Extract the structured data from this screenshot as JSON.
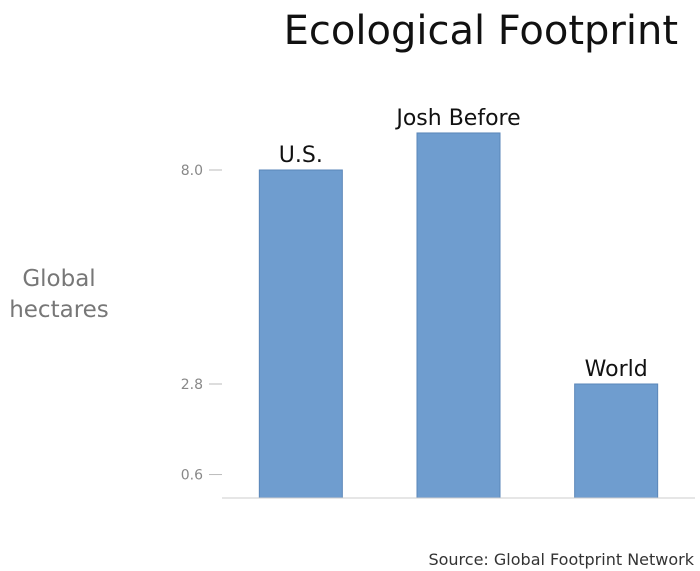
{
  "chart_data": {
    "type": "bar",
    "title": "Ecological Footprint",
    "ylabel": "Global hectares",
    "xlabel": "",
    "categories": [
      "U.S.",
      "Josh Before",
      "World"
    ],
    "values": [
      8.0,
      8.9,
      2.8
    ],
    "yticks": [
      0.6,
      2.8,
      8.0
    ],
    "ytick_labels": [
      "0.6",
      "2.8",
      "8.0"
    ],
    "ylim": [
      0,
      9.2
    ],
    "bar_color": "#6f9dcf",
    "grid": false,
    "legend": "none",
    "source": "Source: Global Footprint Network"
  }
}
